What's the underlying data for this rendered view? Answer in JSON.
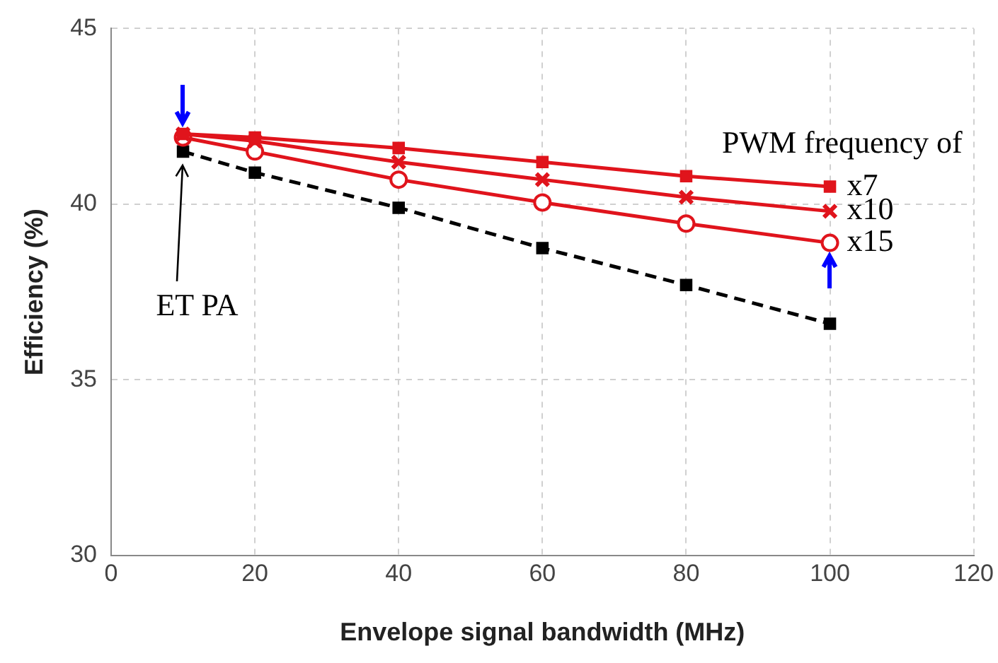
{
  "chart_data": {
    "type": "line",
    "xlabel": "Envelope signal bandwidth (MHz)",
    "ylabel": "Efficiency (%)",
    "x": [
      10,
      20,
      40,
      60,
      80,
      100
    ],
    "series": [
      {
        "name": "x7",
        "color": "#e0141c",
        "marker": "square",
        "line_style": "solid",
        "values": [
          42.0,
          41.9,
          41.6,
          41.2,
          40.8,
          40.5
        ]
      },
      {
        "name": "x10",
        "color": "#e0141c",
        "marker": "cross",
        "line_style": "solid",
        "values": [
          42.0,
          41.8,
          41.2,
          40.7,
          40.2,
          39.8
        ]
      },
      {
        "name": "x15",
        "color": "#e0141c",
        "marker": "circle",
        "line_style": "solid",
        "values": [
          41.9,
          41.5,
          40.7,
          40.05,
          39.45,
          38.9
        ]
      },
      {
        "color": "#000000",
        "marker": "square",
        "line_style": "dashed",
        "values": [
          41.5,
          40.9,
          39.9,
          38.75,
          37.7,
          36.6
        ]
      }
    ],
    "xlim": [
      0,
      120
    ],
    "xticks": [
      0,
      20,
      40,
      60,
      80,
      100,
      120
    ],
    "ylim": [
      30,
      45
    ],
    "yticks": [
      30,
      35,
      40,
      45
    ],
    "grid": true,
    "legend": false,
    "annotations": [
      "PWM frequency of",
      "ET PA"
    ]
  }
}
